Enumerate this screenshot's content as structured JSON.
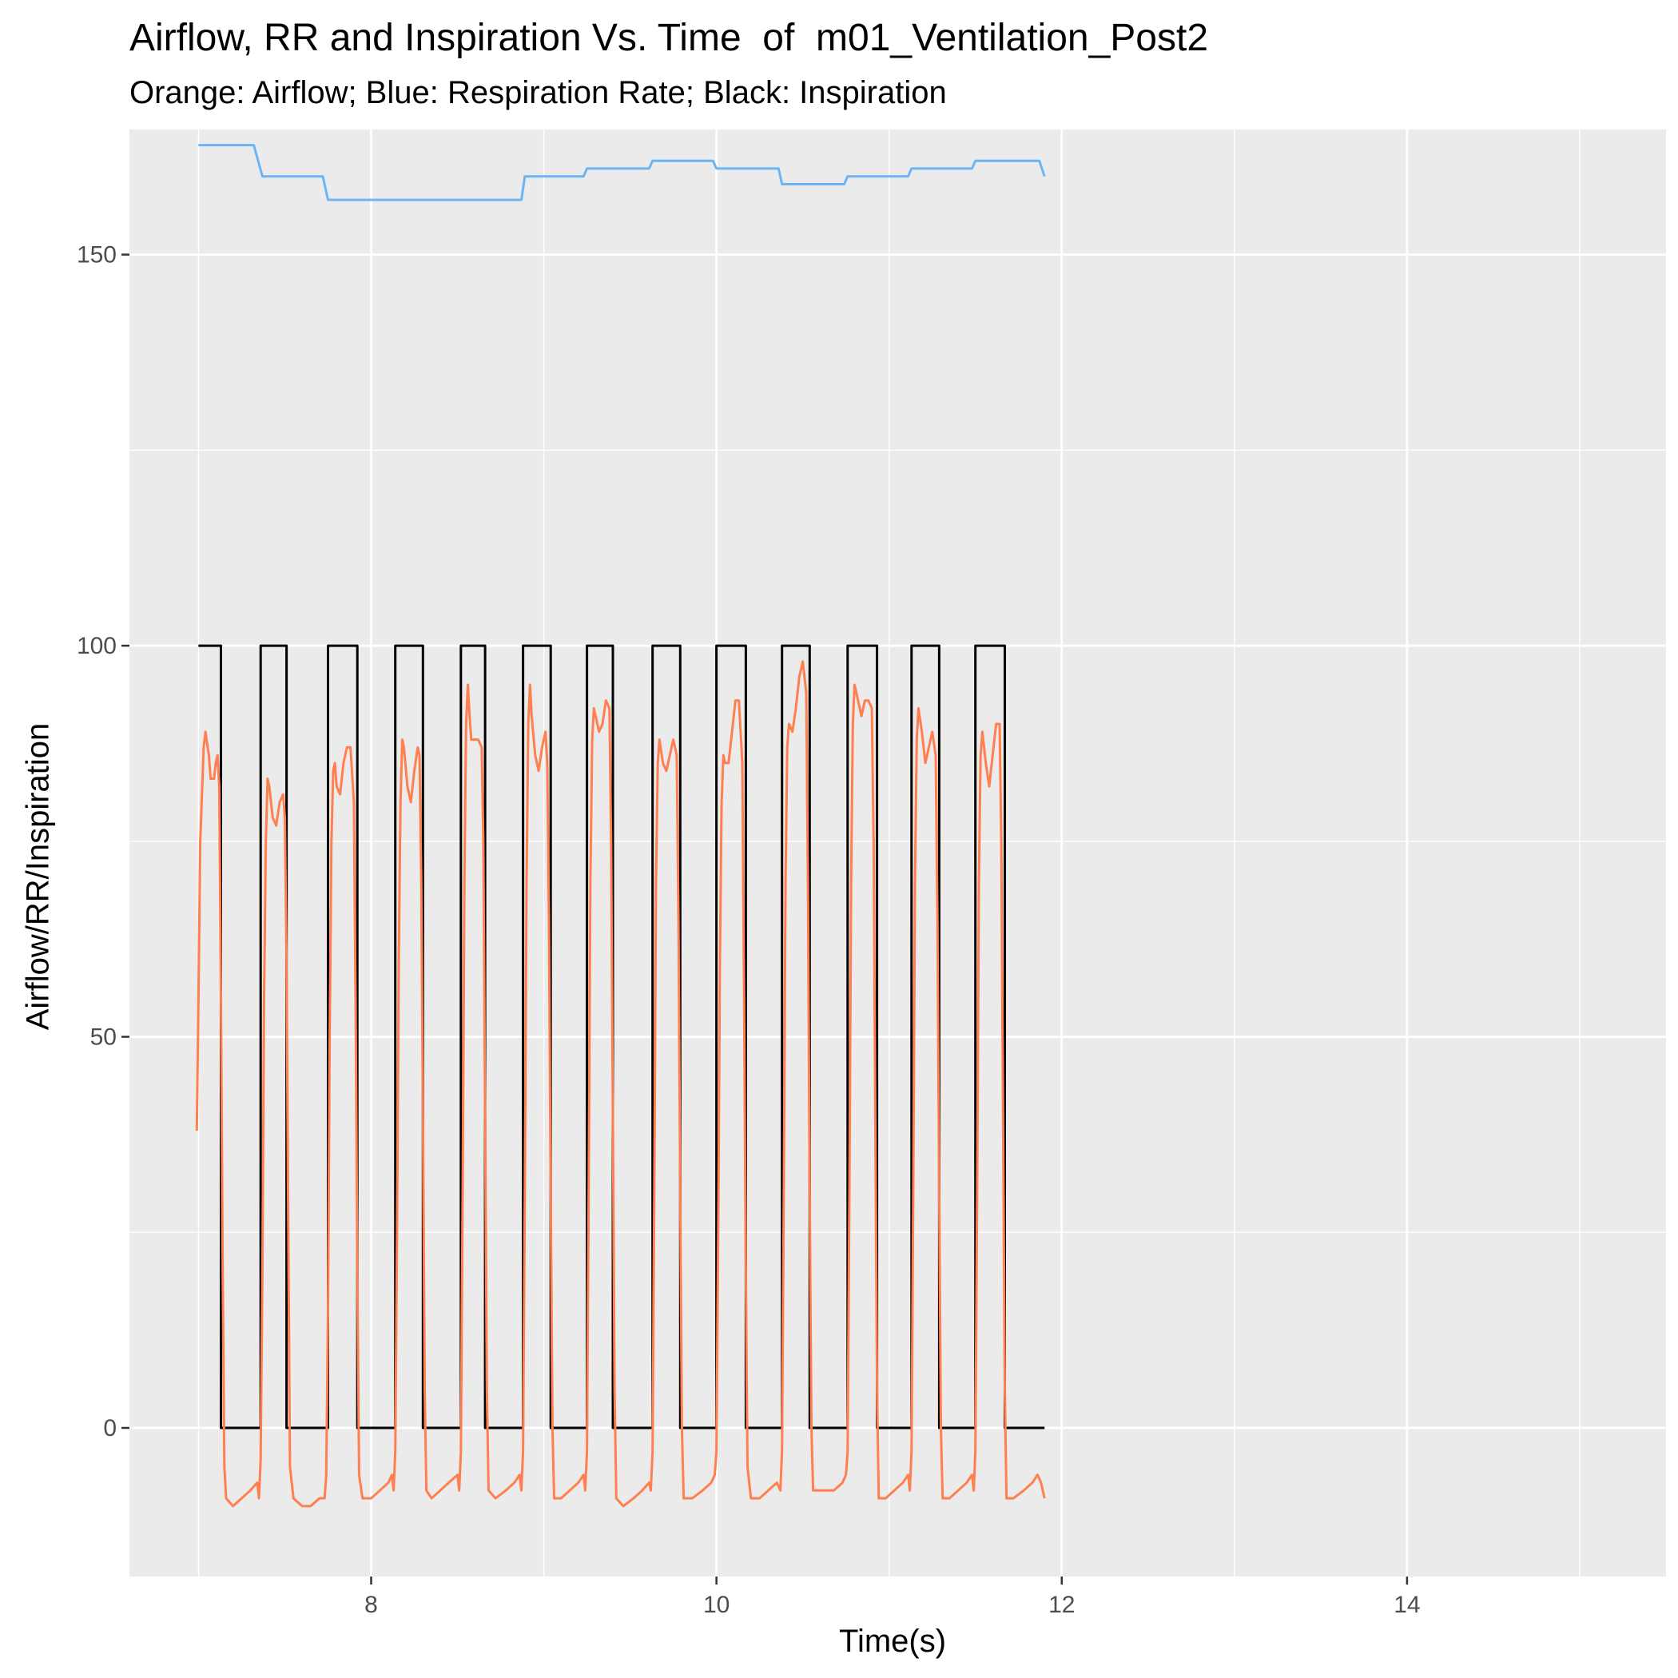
{
  "chart_data": {
    "type": "line",
    "title": "Airflow, RR and Inspiration Vs. Time  of  m01_Ventilation_Post2",
    "subtitle": "Orange: Airflow; Blue: Respiration Rate; Black: Inspiration",
    "xlabel": "Time(s)",
    "ylabel": "Airflow/RR/Inspiration",
    "xlim": [
      6.6,
      15.5
    ],
    "ylim": [
      -19,
      166
    ],
    "x_ticks": [
      8,
      10,
      12,
      14
    ],
    "y_ticks": [
      0,
      50,
      100,
      150
    ],
    "grid": true,
    "colors": {
      "panel": "#ebebeb",
      "grid": "#ffffff",
      "airflow": "#ff7f50",
      "rr": "#6cb4f2",
      "inspiration": "#000000"
    },
    "series": [
      {
        "name": "Inspiration",
        "color": "#000000",
        "points": [
          [
            7.0,
            100
          ],
          [
            7.13,
            100
          ],
          [
            7.13,
            0
          ],
          [
            7.36,
            0
          ],
          [
            7.36,
            100
          ],
          [
            7.51,
            100
          ],
          [
            7.51,
            0
          ],
          [
            7.75,
            0
          ],
          [
            7.75,
            100
          ],
          [
            7.92,
            100
          ],
          [
            7.92,
            0
          ],
          [
            8.14,
            0
          ],
          [
            8.14,
            100
          ],
          [
            8.3,
            100
          ],
          [
            8.3,
            0
          ],
          [
            8.52,
            0
          ],
          [
            8.52,
            100
          ],
          [
            8.66,
            100
          ],
          [
            8.66,
            0
          ],
          [
            8.88,
            0
          ],
          [
            8.88,
            100
          ],
          [
            9.04,
            100
          ],
          [
            9.04,
            0
          ],
          [
            9.25,
            0
          ],
          [
            9.25,
            100
          ],
          [
            9.4,
            100
          ],
          [
            9.4,
            0
          ],
          [
            9.63,
            0
          ],
          [
            9.63,
            100
          ],
          [
            9.79,
            100
          ],
          [
            9.79,
            0
          ],
          [
            10.0,
            0
          ],
          [
            10.0,
            100
          ],
          [
            10.17,
            100
          ],
          [
            10.17,
            0
          ],
          [
            10.38,
            0
          ],
          [
            10.38,
            100
          ],
          [
            10.54,
            100
          ],
          [
            10.54,
            0
          ],
          [
            10.76,
            0
          ],
          [
            10.76,
            100
          ],
          [
            10.93,
            100
          ],
          [
            10.93,
            0
          ],
          [
            11.13,
            0
          ],
          [
            11.13,
            100
          ],
          [
            11.29,
            100
          ],
          [
            11.29,
            0
          ],
          [
            11.5,
            0
          ],
          [
            11.5,
            100
          ],
          [
            11.67,
            100
          ],
          [
            11.67,
            0
          ],
          [
            11.9,
            0
          ]
        ]
      },
      {
        "name": "Respiration Rate",
        "color": "#6cb4f2",
        "points": [
          [
            7.0,
            164
          ],
          [
            7.32,
            164
          ],
          [
            7.37,
            160
          ],
          [
            7.72,
            160
          ],
          [
            7.75,
            157
          ],
          [
            8.87,
            157
          ],
          [
            8.89,
            160
          ],
          [
            9.23,
            160
          ],
          [
            9.25,
            161
          ],
          [
            9.61,
            161
          ],
          [
            9.63,
            162
          ],
          [
            9.98,
            162
          ],
          [
            10.0,
            161
          ],
          [
            10.36,
            161
          ],
          [
            10.38,
            159
          ],
          [
            10.74,
            159
          ],
          [
            10.76,
            160
          ],
          [
            11.11,
            160
          ],
          [
            11.13,
            161
          ],
          [
            11.48,
            161
          ],
          [
            11.5,
            162
          ],
          [
            11.87,
            162
          ],
          [
            11.9,
            160
          ]
        ]
      },
      {
        "name": "Airflow",
        "color": "#ff7f50",
        "points": [
          [
            6.99,
            38
          ],
          [
            7.0,
            55
          ],
          [
            7.01,
            75
          ],
          [
            7.03,
            87
          ],
          [
            7.04,
            89
          ],
          [
            7.06,
            86
          ],
          [
            7.07,
            83
          ],
          [
            7.09,
            83
          ],
          [
            7.1,
            85
          ],
          [
            7.11,
            86
          ],
          [
            7.12,
            82
          ],
          [
            7.13,
            55
          ],
          [
            7.14,
            20
          ],
          [
            7.15,
            -5
          ],
          [
            7.16,
            -9
          ],
          [
            7.2,
            -10
          ],
          [
            7.25,
            -9
          ],
          [
            7.3,
            -8
          ],
          [
            7.34,
            -7
          ],
          [
            7.35,
            -9
          ],
          [
            7.36,
            -4
          ],
          [
            7.37,
            20
          ],
          [
            7.38,
            55
          ],
          [
            7.39,
            75
          ],
          [
            7.4,
            83
          ],
          [
            7.41,
            82
          ],
          [
            7.43,
            78
          ],
          [
            7.45,
            77
          ],
          [
            7.47,
            80
          ],
          [
            7.49,
            81
          ],
          [
            7.5,
            78
          ],
          [
            7.51,
            60
          ],
          [
            7.52,
            25
          ],
          [
            7.53,
            -5
          ],
          [
            7.55,
            -9
          ],
          [
            7.6,
            -10
          ],
          [
            7.65,
            -10
          ],
          [
            7.7,
            -9
          ],
          [
            7.73,
            -9
          ],
          [
            7.74,
            -6
          ],
          [
            7.75,
            15
          ],
          [
            7.76,
            50
          ],
          [
            7.77,
            75
          ],
          [
            7.78,
            84
          ],
          [
            7.79,
            85
          ],
          [
            7.8,
            82
          ],
          [
            7.82,
            81
          ],
          [
            7.84,
            85
          ],
          [
            7.86,
            87
          ],
          [
            7.88,
            87
          ],
          [
            7.9,
            80
          ],
          [
            7.91,
            55
          ],
          [
            7.92,
            20
          ],
          [
            7.93,
            -6
          ],
          [
            7.95,
            -9
          ],
          [
            8.0,
            -9
          ],
          [
            8.05,
            -8
          ],
          [
            8.1,
            -7
          ],
          [
            8.12,
            -6
          ],
          [
            8.13,
            -8
          ],
          [
            8.14,
            -3
          ],
          [
            8.15,
            25
          ],
          [
            8.16,
            60
          ],
          [
            8.17,
            80
          ],
          [
            8.18,
            88
          ],
          [
            8.19,
            87
          ],
          [
            8.21,
            82
          ],
          [
            8.23,
            80
          ],
          [
            8.25,
            84
          ],
          [
            8.27,
            87
          ],
          [
            8.28,
            86
          ],
          [
            8.29,
            70
          ],
          [
            8.3,
            40
          ],
          [
            8.31,
            5
          ],
          [
            8.32,
            -8
          ],
          [
            8.35,
            -9
          ],
          [
            8.4,
            -8
          ],
          [
            8.45,
            -7
          ],
          [
            8.5,
            -6
          ],
          [
            8.51,
            -8
          ],
          [
            8.52,
            -3
          ],
          [
            8.53,
            30
          ],
          [
            8.54,
            70
          ],
          [
            8.55,
            90
          ],
          [
            8.56,
            95
          ],
          [
            8.57,
            91
          ],
          [
            8.58,
            88
          ],
          [
            8.6,
            88
          ],
          [
            8.62,
            88
          ],
          [
            8.64,
            87
          ],
          [
            8.65,
            75
          ],
          [
            8.66,
            40
          ],
          [
            8.67,
            5
          ],
          [
            8.68,
            -8
          ],
          [
            8.72,
            -9
          ],
          [
            8.78,
            -8
          ],
          [
            8.83,
            -7
          ],
          [
            8.86,
            -6
          ],
          [
            8.87,
            -8
          ],
          [
            8.88,
            -3
          ],
          [
            8.89,
            30
          ],
          [
            8.9,
            70
          ],
          [
            8.91,
            90
          ],
          [
            8.92,
            95
          ],
          [
            8.93,
            91
          ],
          [
            8.95,
            86
          ],
          [
            8.97,
            84
          ],
          [
            8.99,
            87
          ],
          [
            9.01,
            89
          ],
          [
            9.02,
            85
          ],
          [
            9.03,
            65
          ],
          [
            9.04,
            30
          ],
          [
            9.05,
            0
          ],
          [
            9.06,
            -9
          ],
          [
            9.1,
            -9
          ],
          [
            9.15,
            -8
          ],
          [
            9.2,
            -7
          ],
          [
            9.23,
            -6
          ],
          [
            9.24,
            -8
          ],
          [
            9.25,
            -3
          ],
          [
            9.26,
            30
          ],
          [
            9.27,
            70
          ],
          [
            9.28,
            88
          ],
          [
            9.29,
            92
          ],
          [
            9.3,
            91
          ],
          [
            9.32,
            89
          ],
          [
            9.34,
            90
          ],
          [
            9.36,
            93
          ],
          [
            9.38,
            92
          ],
          [
            9.39,
            75
          ],
          [
            9.4,
            40
          ],
          [
            9.41,
            5
          ],
          [
            9.42,
            -9
          ],
          [
            9.46,
            -10
          ],
          [
            9.52,
            -9
          ],
          [
            9.57,
            -8
          ],
          [
            9.61,
            -7
          ],
          [
            9.62,
            -8
          ],
          [
            9.63,
            -3
          ],
          [
            9.64,
            30
          ],
          [
            9.65,
            70
          ],
          [
            9.66,
            85
          ],
          [
            9.67,
            88
          ],
          [
            9.69,
            85
          ],
          [
            9.71,
            84
          ],
          [
            9.73,
            86
          ],
          [
            9.75,
            88
          ],
          [
            9.77,
            86
          ],
          [
            9.78,
            65
          ],
          [
            9.79,
            30
          ],
          [
            9.8,
            0
          ],
          [
            9.81,
            -9
          ],
          [
            9.86,
            -9
          ],
          [
            9.92,
            -8
          ],
          [
            9.97,
            -7
          ],
          [
            9.99,
            -6
          ],
          [
            10.0,
            -3
          ],
          [
            10.01,
            25
          ],
          [
            10.02,
            60
          ],
          [
            10.03,
            80
          ],
          [
            10.04,
            86
          ],
          [
            10.05,
            85
          ],
          [
            10.07,
            85
          ],
          [
            10.09,
            89
          ],
          [
            10.11,
            93
          ],
          [
            10.13,
            93
          ],
          [
            10.15,
            85
          ],
          [
            10.16,
            55
          ],
          [
            10.17,
            20
          ],
          [
            10.18,
            -5
          ],
          [
            10.2,
            -9
          ],
          [
            10.25,
            -9
          ],
          [
            10.3,
            -8
          ],
          [
            10.35,
            -7
          ],
          [
            10.37,
            -8
          ],
          [
            10.38,
            -3
          ],
          [
            10.39,
            30
          ],
          [
            10.4,
            70
          ],
          [
            10.41,
            87
          ],
          [
            10.42,
            90
          ],
          [
            10.44,
            89
          ],
          [
            10.46,
            92
          ],
          [
            10.48,
            96
          ],
          [
            10.5,
            98
          ],
          [
            10.52,
            94
          ],
          [
            10.53,
            70
          ],
          [
            10.54,
            30
          ],
          [
            10.55,
            0
          ],
          [
            10.56,
            -8
          ],
          [
            10.62,
            -8
          ],
          [
            10.68,
            -8
          ],
          [
            10.73,
            -7
          ],
          [
            10.75,
            -6
          ],
          [
            10.76,
            -3
          ],
          [
            10.77,
            30
          ],
          [
            10.78,
            70
          ],
          [
            10.79,
            90
          ],
          [
            10.8,
            95
          ],
          [
            10.82,
            93
          ],
          [
            10.84,
            91
          ],
          [
            10.86,
            93
          ],
          [
            10.88,
            93
          ],
          [
            10.9,
            92
          ],
          [
            10.91,
            75
          ],
          [
            10.92,
            40
          ],
          [
            10.93,
            5
          ],
          [
            10.94,
            -9
          ],
          [
            10.98,
            -9
          ],
          [
            11.03,
            -8
          ],
          [
            11.08,
            -7
          ],
          [
            11.11,
            -6
          ],
          [
            11.12,
            -8
          ],
          [
            11.13,
            -3
          ],
          [
            11.14,
            30
          ],
          [
            11.15,
            70
          ],
          [
            11.16,
            88
          ],
          [
            11.17,
            92
          ],
          [
            11.19,
            89
          ],
          [
            11.21,
            85
          ],
          [
            11.23,
            87
          ],
          [
            11.25,
            89
          ],
          [
            11.27,
            86
          ],
          [
            11.28,
            65
          ],
          [
            11.29,
            30
          ],
          [
            11.3,
            0
          ],
          [
            11.31,
            -9
          ],
          [
            11.35,
            -9
          ],
          [
            11.4,
            -8
          ],
          [
            11.45,
            -7
          ],
          [
            11.48,
            -6
          ],
          [
            11.49,
            -8
          ],
          [
            11.5,
            -3
          ],
          [
            11.51,
            30
          ],
          [
            11.52,
            70
          ],
          [
            11.53,
            86
          ],
          [
            11.54,
            89
          ],
          [
            11.56,
            85
          ],
          [
            11.58,
            82
          ],
          [
            11.6,
            86
          ],
          [
            11.62,
            90
          ],
          [
            11.64,
            90
          ],
          [
            11.65,
            75
          ],
          [
            11.66,
            40
          ],
          [
            11.67,
            5
          ],
          [
            11.68,
            -9
          ],
          [
            11.72,
            -9
          ],
          [
            11.78,
            -8
          ],
          [
            11.83,
            -7
          ],
          [
            11.86,
            -6
          ],
          [
            11.88,
            -7
          ],
          [
            11.9,
            -9
          ]
        ]
      }
    ]
  }
}
